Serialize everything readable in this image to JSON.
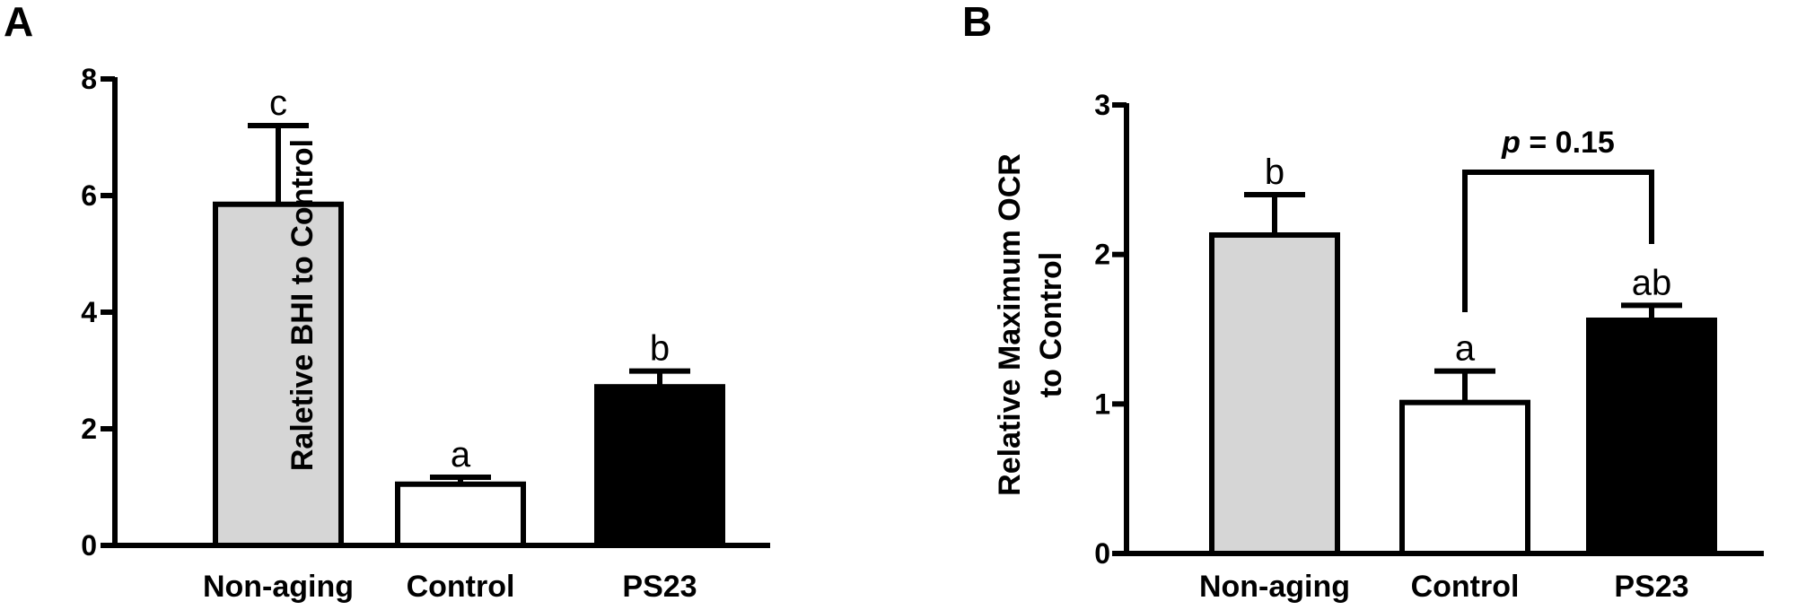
{
  "chart_data": [
    {
      "type": "bar",
      "panel": "A",
      "categories": [
        "Non-aging",
        "Control",
        "PS23"
      ],
      "values": [
        5.85,
        1.05,
        2.72
      ],
      "errors": [
        1.35,
        0.12,
        0.27
      ],
      "significance": [
        "c",
        "a",
        "b"
      ],
      "colors": [
        "#d6d6d6",
        "#ffffff",
        "#000000"
      ],
      "title": "",
      "xlabel": "",
      "ylabel": "Raletive BHI to Control",
      "ylim": [
        0,
        8
      ],
      "yticks": [
        0,
        2,
        4,
        6,
        8
      ],
      "grid": false,
      "legend": "none"
    },
    {
      "type": "bar",
      "panel": "B",
      "categories": [
        "Non-aging",
        "Control",
        "PS23"
      ],
      "values": [
        2.13,
        1.01,
        1.56
      ],
      "errors": [
        0.27,
        0.21,
        0.1
      ],
      "significance": [
        "b",
        "a",
        "ab"
      ],
      "colors": [
        "#d6d6d6",
        "#ffffff",
        "#000000"
      ],
      "title": "",
      "xlabel": "",
      "ylabel": [
        "Relative Maximum OCR",
        "to Control"
      ],
      "ylim": [
        0,
        3
      ],
      "yticks": [
        0,
        1,
        2,
        3
      ],
      "grid": false,
      "legend": "none",
      "comparison": {
        "from": "Control",
        "to": "PS23",
        "p_italic": "p",
        "p_text": " = 0.15",
        "y_value": 2.55
      }
    }
  ]
}
